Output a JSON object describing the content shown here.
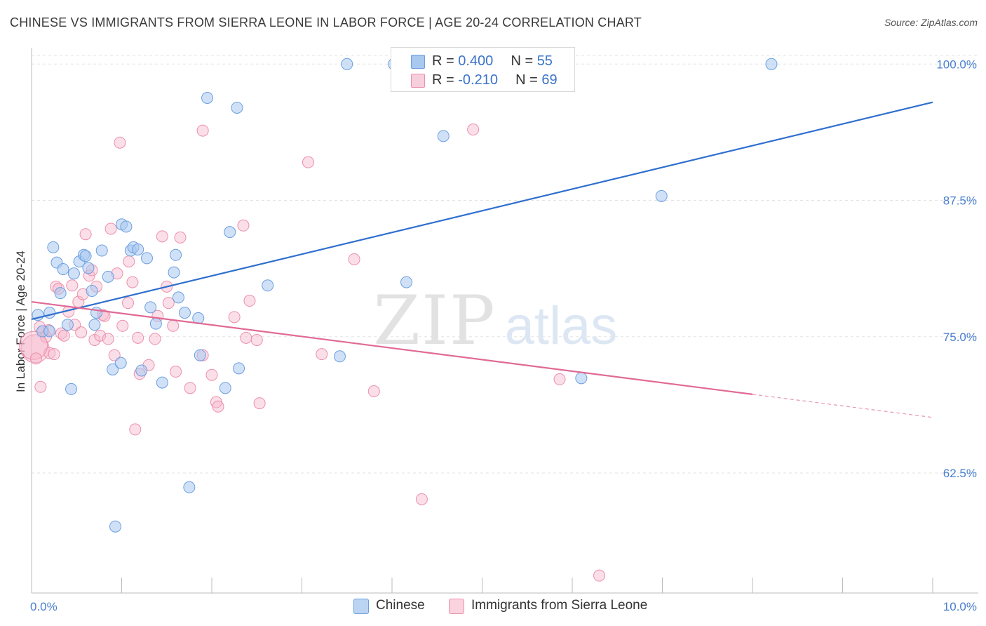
{
  "title": "CHINESE VS IMMIGRANTS FROM SIERRA LEONE IN LABOR FORCE | AGE 20-24 CORRELATION CHART",
  "source": "Source: ZipAtlas.com",
  "watermark": {
    "zip": "ZIP",
    "atlas": "atlas"
  },
  "legend_top": {
    "rows": [
      {
        "r_label": "R = ",
        "r_value": "0.400",
        "n_label": "N = ",
        "n_value": "55",
        "color": "#a9c8f0"
      },
      {
        "r_label": "R = ",
        "r_value": "-0.210",
        "n_label": "N = ",
        "n_value": "69",
        "color": "#f7b9cc"
      }
    ]
  },
  "legend_bottom": [
    {
      "label": "Chinese",
      "color": "#a9c8f0"
    },
    {
      "label": "Immigrants from Sierra Leone",
      "color": "#f7b9cc"
    }
  ],
  "chart_data": {
    "type": "scatter",
    "title": "CHINESE VS IMMIGRANTS FROM SIERRA LEONE IN LABOR FORCE | AGE 20-24 CORRELATION CHART",
    "xlabel": "",
    "ylabel": "In Labor Force | Age 20-24",
    "xlim": [
      0,
      10
    ],
    "ylim": [
      51.5,
      101.5
    ],
    "x_tick_labels": [
      "0.0%",
      "10.0%"
    ],
    "y_ticks": [
      62.5,
      75.0,
      87.5,
      100.0
    ],
    "y_tick_labels": [
      "62.5%",
      "75.0%",
      "87.5%",
      "100.0%"
    ],
    "grid": true,
    "series": [
      {
        "name": "Chinese",
        "color": "#a9c8f0",
        "stroke": "#6b9fe0",
        "line_color": "#2f6fce",
        "trend": {
          "x": [
            0.0,
            10.0
          ],
          "y": [
            76.6,
            96.5
          ],
          "dashed_from": null
        },
        "points": [
          [
            0.07,
            77.0
          ],
          [
            0.12,
            75.5
          ],
          [
            0.2,
            75.5
          ],
          [
            0.2,
            77.2
          ],
          [
            0.24,
            83.2
          ],
          [
            0.28,
            81.8
          ],
          [
            0.32,
            79.0
          ],
          [
            0.35,
            81.2
          ],
          [
            0.4,
            76.1
          ],
          [
            0.44,
            70.2
          ],
          [
            0.47,
            80.8
          ],
          [
            0.53,
            81.9
          ],
          [
            0.58,
            82.5
          ],
          [
            0.6,
            82.4
          ],
          [
            0.63,
            81.3
          ],
          [
            0.67,
            79.2
          ],
          [
            0.7,
            76.1
          ],
          [
            0.72,
            77.2
          ],
          [
            0.78,
            82.9
          ],
          [
            0.85,
            80.5
          ],
          [
            0.9,
            72.0
          ],
          [
            0.93,
            57.6
          ],
          [
            0.99,
            72.6
          ],
          [
            1.0,
            85.3
          ],
          [
            1.05,
            85.1
          ],
          [
            1.1,
            82.9
          ],
          [
            1.13,
            83.2
          ],
          [
            1.18,
            83.0
          ],
          [
            1.22,
            71.9
          ],
          [
            1.28,
            82.2
          ],
          [
            1.32,
            77.7
          ],
          [
            1.38,
            76.2
          ],
          [
            1.45,
            70.8
          ],
          [
            1.58,
            80.9
          ],
          [
            1.6,
            82.5
          ],
          [
            1.63,
            78.6
          ],
          [
            1.7,
            77.2
          ],
          [
            1.75,
            61.2
          ],
          [
            1.85,
            76.7
          ],
          [
            1.87,
            73.3
          ],
          [
            1.95,
            96.9
          ],
          [
            2.15,
            70.3
          ],
          [
            2.2,
            84.6
          ],
          [
            2.28,
            96.0
          ],
          [
            2.3,
            72.1
          ],
          [
            2.62,
            79.7
          ],
          [
            3.42,
            73.2
          ],
          [
            3.5,
            100.0
          ],
          [
            4.02,
            100.0
          ],
          [
            4.1,
            99.9
          ],
          [
            4.16,
            80.0
          ],
          [
            4.57,
            93.4
          ],
          [
            6.1,
            71.2
          ],
          [
            6.99,
            87.9
          ],
          [
            8.21,
            100.0
          ]
        ]
      },
      {
        "name": "Immigrants from Sierra Leone",
        "color": "#f7b9cc",
        "stroke": "#ec8fac",
        "line_color": "#e06a95",
        "trend": {
          "x": [
            0.0,
            10.0
          ],
          "y": [
            78.2,
            67.6
          ],
          "dashed_from": 8.0
        },
        "points": [
          [
            0.04,
            73.9
          ],
          [
            0.1,
            70.4
          ],
          [
            0.13,
            75.5
          ],
          [
            0.16,
            75.0
          ],
          [
            0.19,
            75.6
          ],
          [
            0.2,
            73.5
          ],
          [
            0.25,
            73.4
          ],
          [
            0.27,
            79.6
          ],
          [
            0.3,
            79.4
          ],
          [
            0.33,
            75.3
          ],
          [
            0.36,
            75.1
          ],
          [
            0.41,
            77.3
          ],
          [
            0.45,
            79.7
          ],
          [
            0.48,
            76.1
          ],
          [
            0.52,
            78.2
          ],
          [
            0.55,
            75.4
          ],
          [
            0.57,
            78.9
          ],
          [
            0.6,
            84.4
          ],
          [
            0.64,
            80.6
          ],
          [
            0.67,
            81.1
          ],
          [
            0.7,
            74.7
          ],
          [
            0.72,
            79.6
          ],
          [
            0.76,
            75.1
          ],
          [
            0.79,
            77.0
          ],
          [
            0.81,
            76.9
          ],
          [
            0.85,
            74.8
          ],
          [
            0.88,
            84.9
          ],
          [
            0.92,
            73.3
          ],
          [
            0.95,
            80.8
          ],
          [
            0.98,
            92.8
          ],
          [
            1.01,
            76.0
          ],
          [
            1.07,
            78.1
          ],
          [
            1.08,
            81.9
          ],
          [
            1.12,
            80.0
          ],
          [
            1.15,
            66.5
          ],
          [
            1.18,
            74.9
          ],
          [
            1.2,
            71.6
          ],
          [
            1.3,
            72.4
          ],
          [
            1.37,
            74.8
          ],
          [
            1.4,
            76.9
          ],
          [
            1.45,
            84.2
          ],
          [
            1.5,
            79.6
          ],
          [
            1.52,
            78.1
          ],
          [
            1.57,
            76.0
          ],
          [
            1.6,
            71.8
          ],
          [
            1.65,
            84.1
          ],
          [
            1.76,
            70.3
          ],
          [
            1.9,
            73.3
          ],
          [
            1.9,
            93.9
          ],
          [
            2.0,
            71.5
          ],
          [
            2.05,
            69.0
          ],
          [
            2.07,
            68.6
          ],
          [
            2.25,
            76.8
          ],
          [
            2.35,
            85.2
          ],
          [
            2.38,
            74.9
          ],
          [
            2.42,
            78.3
          ],
          [
            2.5,
            74.7
          ],
          [
            2.53,
            68.9
          ],
          [
            3.07,
            91.0
          ],
          [
            3.22,
            73.4
          ],
          [
            3.58,
            82.1
          ],
          [
            3.8,
            70.0
          ],
          [
            4.33,
            60.1
          ],
          [
            4.9,
            94.0
          ],
          [
            5.86,
            71.1
          ],
          [
            6.3,
            53.1
          ],
          [
            0.02,
            74.2
          ],
          [
            0.05,
            73.0
          ],
          [
            0.09,
            75.9
          ]
        ]
      }
    ]
  }
}
